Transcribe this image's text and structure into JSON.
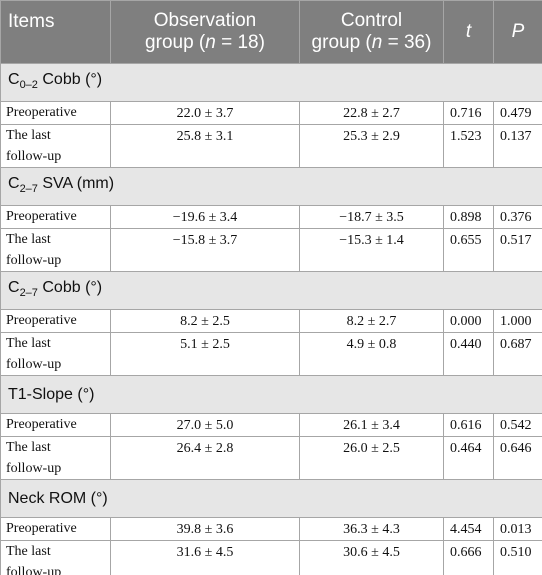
{
  "header": {
    "items": "Items",
    "obs_line1": "Observation",
    "obs_line2_prefix": "group (",
    "obs_n": "n",
    "obs_line2_suffix": " = 18)",
    "ctrl_line1": "Control",
    "ctrl_line2_prefix": "group (",
    "ctrl_n": "n",
    "ctrl_line2_suffix": " = 36)",
    "t": "t",
    "p": "P"
  },
  "sections": [
    {
      "title_main": "C",
      "title_sub": "0–2",
      "title_rest": " Cobb (°)",
      "rows": [
        {
          "label": "Preoperative",
          "obs": "22.0 ± 3.7",
          "ctrl": "22.8 ± 2.7",
          "t": "0.716",
          "p": "0.479"
        },
        {
          "label_l1": "The last",
          "label_l2": "follow-up",
          "obs": "25.8 ± 3.1",
          "ctrl": "25.3 ± 2.9",
          "t": "1.523",
          "p": "0.137"
        }
      ]
    },
    {
      "title_main": "C",
      "title_sub": "2–7",
      "title_rest": " SVA (mm)",
      "rows": [
        {
          "label": "Preoperative",
          "obs": "−19.6 ± 3.4",
          "ctrl": "−18.7 ± 3.5",
          "t": "0.898",
          "p": "0.376"
        },
        {
          "label_l1": "The last",
          "label_l2": "follow-up",
          "obs": "−15.8 ± 3.7",
          "ctrl": "−15.3 ± 1.4",
          "t": "0.655",
          "p": "0.517"
        }
      ]
    },
    {
      "title_main": "C",
      "title_sub": "2–7",
      "title_rest": " Cobb (°)",
      "rows": [
        {
          "label": "Preoperative",
          "obs": "8.2 ± 2.5",
          "ctrl": "8.2 ± 2.7",
          "t": "0.000",
          "p": "1.000"
        },
        {
          "label_l1": "The last",
          "label_l2": "follow-up",
          "obs": "5.1 ± 2.5",
          "ctrl": "4.9 ± 0.8",
          "t": "0.440",
          "p": "0.687"
        }
      ]
    },
    {
      "title_main": "T1-Slope (°)",
      "rows": [
        {
          "label": "Preoperative",
          "obs": "27.0 ± 5.0",
          "ctrl": "26.1 ± 3.4",
          "t": "0.616",
          "p": "0.542"
        },
        {
          "label_l1": "The last",
          "label_l2": "follow-up",
          "obs": "26.4 ± 2.8",
          "ctrl": "26.0 ± 2.5",
          "t": "0.464",
          "p": "0.646"
        }
      ]
    },
    {
      "title_main": "Neck ROM (°)",
      "rows": [
        {
          "label": "Preoperative",
          "obs": "39.8 ± 3.6",
          "ctrl": "36.3 ± 4.3",
          "t": "4.454",
          "p": "0.013"
        },
        {
          "label_l1": "The last",
          "label_l2": "follow-up",
          "obs": "31.6 ± 4.5",
          "ctrl": "30.6 ± 4.5",
          "t": "0.666",
          "p": "0.510"
        }
      ]
    }
  ]
}
